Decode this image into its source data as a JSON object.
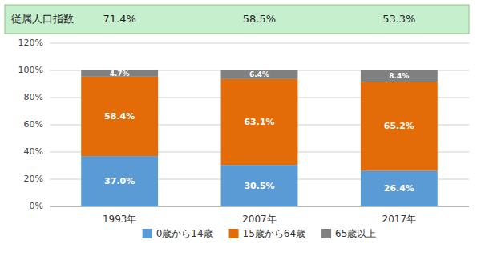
{
  "chart_data": {
    "type": "bar",
    "stacked": true,
    "categories": [
      "1993年",
      "2007年",
      "2017年"
    ],
    "series": [
      {
        "name": "0歳から14歳",
        "color": "#5B9BD5",
        "values": [
          37.0,
          30.5,
          26.4
        ],
        "value_labels": [
          "37.0%",
          "30.5%",
          "26.4%"
        ]
      },
      {
        "name": "15歳から64歳",
        "color": "#E36C09",
        "values": [
          58.4,
          63.1,
          65.2
        ],
        "value_labels": [
          "58.4%",
          "63.1%",
          "65.2%"
        ]
      },
      {
        "name": "65歳以上",
        "color": "#808080",
        "values": [
          4.7,
          6.4,
          8.4
        ],
        "value_labels": [
          "4.7%",
          "6.4%",
          "8.4%"
        ]
      }
    ],
    "ylim": [
      0,
      120
    ],
    "yticks": [
      {
        "value": 0,
        "label": "0%"
      },
      {
        "value": 20,
        "label": "20%"
      },
      {
        "value": 40,
        "label": "40%"
      },
      {
        "value": 60,
        "label": "60%"
      },
      {
        "value": 80,
        "label": "80%"
      },
      {
        "value": 100,
        "label": "100%"
      },
      {
        "value": 120,
        "label": "120%"
      }
    ],
    "grid": true,
    "data_labels": true,
    "legend": "bottom",
    "annotation": {
      "text": "従属人口指数",
      "color": "#C6EFCE",
      "values": [
        71.4,
        58.5,
        53.3
      ],
      "value_labels": [
        "71.4%",
        "58.5%",
        "53.3%"
      ]
    }
  }
}
